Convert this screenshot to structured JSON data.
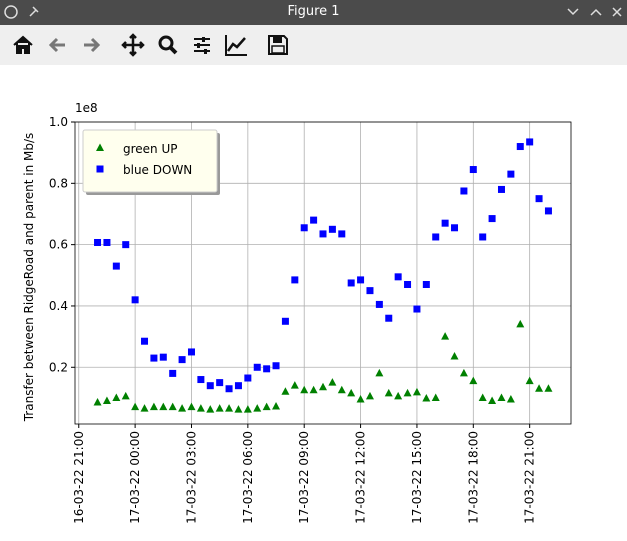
{
  "window": {
    "title": "Figure 1"
  },
  "chart_data": {
    "type": "scatter",
    "y_label": "Transfer between RidgeRoad and parent in Mb/s",
    "offset_text": "1e8",
    "x": [
      "16-03-22 22:00",
      "16-03-22 22:30",
      "16-03-22 23:00",
      "16-03-22 23:30",
      "17-03-22 00:00",
      "17-03-22 00:30",
      "17-03-22 01:00",
      "17-03-22 01:30",
      "17-03-22 02:00",
      "17-03-22 02:30",
      "17-03-22 03:00",
      "17-03-22 03:30",
      "17-03-22 04:00",
      "17-03-22 04:30",
      "17-03-22 05:00",
      "17-03-22 05:30",
      "17-03-22 06:00",
      "17-03-22 06:30",
      "17-03-22 07:00",
      "17-03-22 07:30",
      "17-03-22 08:00",
      "17-03-22 08:30",
      "17-03-22 09:00",
      "17-03-22 09:30",
      "17-03-22 10:00",
      "17-03-22 10:30",
      "17-03-22 11:00",
      "17-03-22 11:30",
      "17-03-22 12:00",
      "17-03-22 12:30",
      "17-03-22 13:00",
      "17-03-22 13:30",
      "17-03-22 14:00",
      "17-03-22 14:30",
      "17-03-22 15:00",
      "17-03-22 15:30",
      "17-03-22 16:00",
      "17-03-22 16:30",
      "17-03-22 17:00",
      "17-03-22 17:30",
      "17-03-22 18:00",
      "17-03-22 18:30",
      "17-03-22 19:00",
      "17-03-22 19:30",
      "17-03-22 20:00",
      "17-03-22 20:30",
      "17-03-22 21:00",
      "17-03-22 21:30",
      "17-03-22 22:00"
    ],
    "series": [
      {
        "name": "green UP",
        "color": "#008000",
        "marker": "triangle",
        "values": [
          0.085,
          0.09,
          0.1,
          0.105,
          0.07,
          0.065,
          0.07,
          0.07,
          0.07,
          0.065,
          0.07,
          0.065,
          0.062,
          0.065,
          0.065,
          0.062,
          0.062,
          0.065,
          0.07,
          0.072,
          0.12,
          0.14,
          0.125,
          0.125,
          0.135,
          0.15,
          0.125,
          0.115,
          0.095,
          0.105,
          0.18,
          0.115,
          0.105,
          0.115,
          0.118,
          0.098,
          0.1,
          0.3,
          0.235,
          0.18,
          0.155,
          0.1,
          0.09,
          0.1,
          0.095,
          0.34,
          0.155,
          0.13,
          0.13
        ]
      },
      {
        "name": "blue DOWN",
        "color": "#0000ff",
        "marker": "square",
        "values": [
          0.607,
          0.607,
          0.53,
          0.6,
          0.42,
          0.285,
          0.23,
          0.233,
          0.18,
          0.225,
          0.25,
          0.16,
          0.14,
          0.15,
          0.13,
          0.14,
          0.165,
          0.2,
          0.195,
          0.205,
          0.35,
          0.485,
          0.655,
          0.68,
          0.635,
          0.65,
          0.635,
          0.475,
          0.485,
          0.45,
          0.405,
          0.36,
          0.495,
          0.47,
          0.39,
          0.47,
          0.625,
          0.67,
          0.655,
          0.775,
          0.845,
          0.625,
          0.685,
          0.78,
          0.83,
          0.92,
          0.935,
          0.75,
          0.71
        ]
      }
    ],
    "xlim": [
      "16-03-22 20:48",
      "17-03-22 23:12"
    ],
    "xticks": [
      "16-03-22 21:00",
      "17-03-22 00:00",
      "17-03-22 03:00",
      "17-03-22 06:00",
      "17-03-22 09:00",
      "17-03-22 12:00",
      "17-03-22 15:00",
      "17-03-22 18:00",
      "17-03-22 21:00"
    ],
    "ylim": [
      0.015,
      1.0
    ],
    "yticks": [
      0.2,
      0.4,
      0.6,
      0.8,
      {
        "value": 1.0,
        "label": "1.0"
      }
    ],
    "grid": true,
    "legend": "upper left"
  }
}
